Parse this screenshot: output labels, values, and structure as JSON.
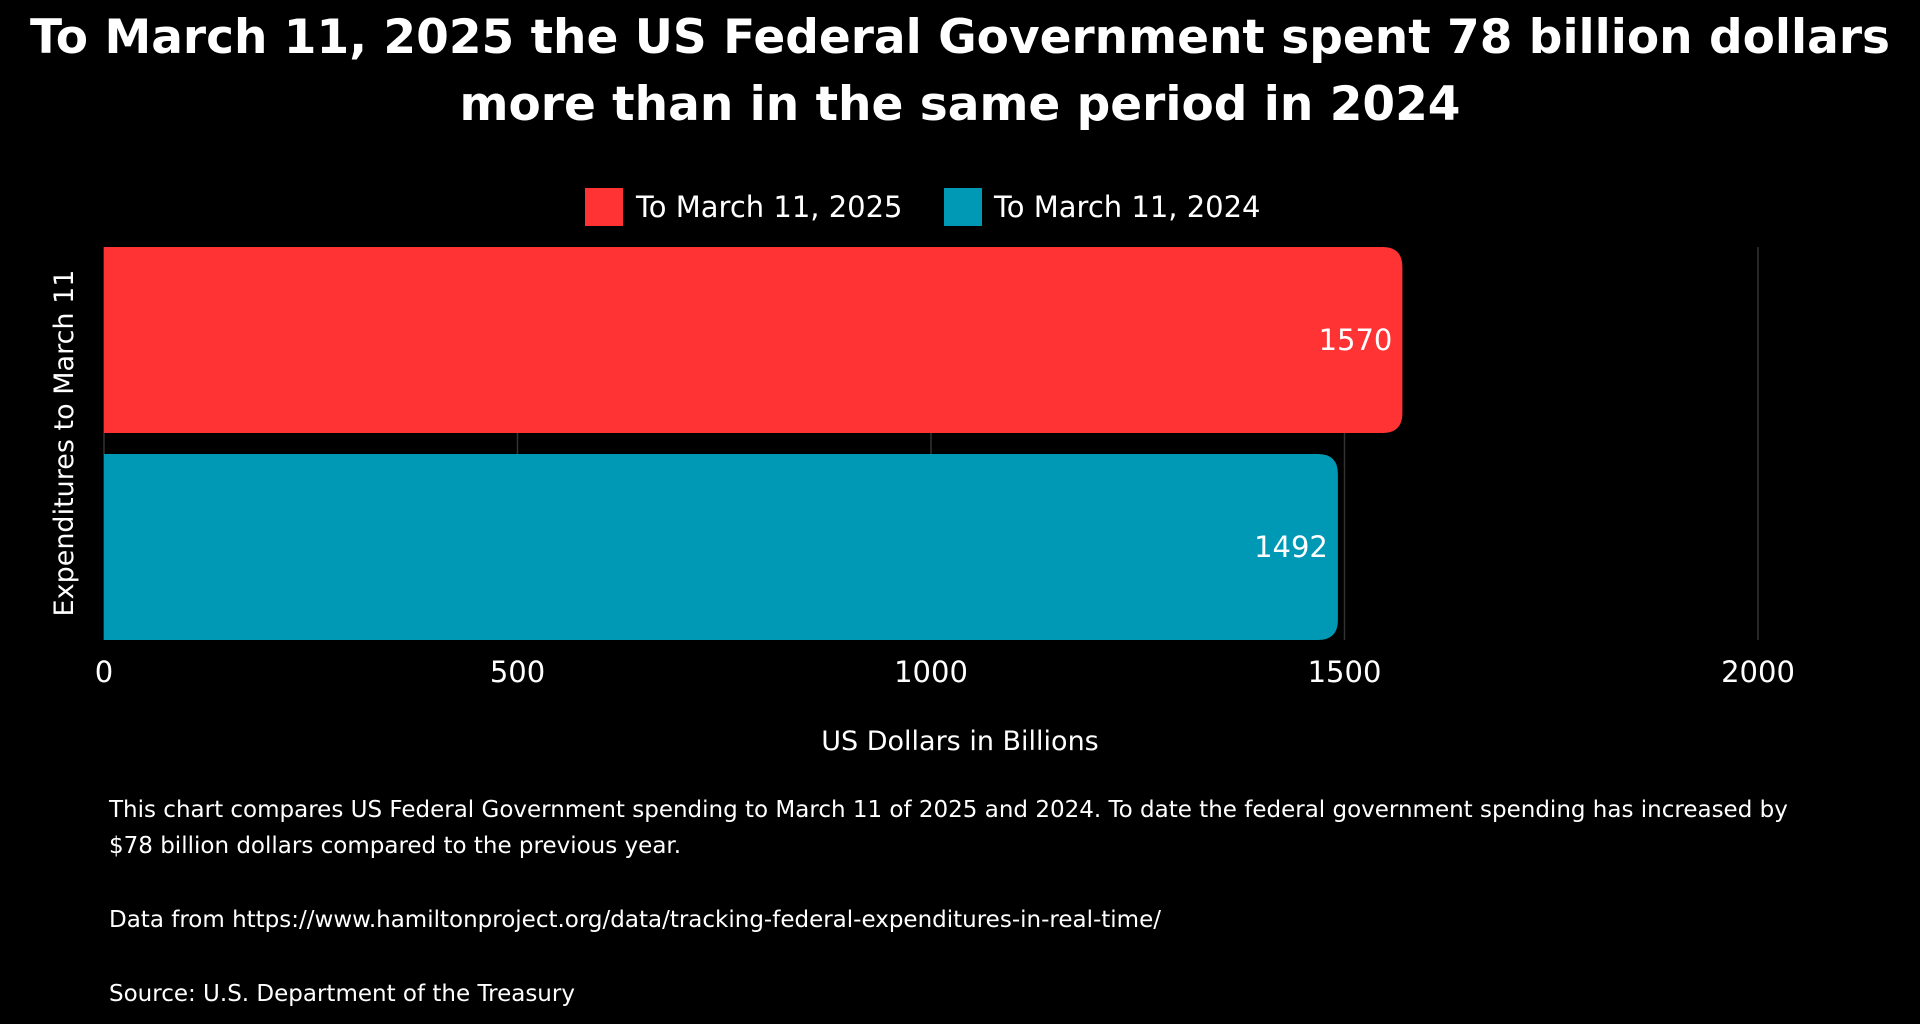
{
  "chart_data": {
    "type": "bar",
    "orientation": "horizontal",
    "title": "To March 11, 2025 the US Federal Government spent 78 billion dollars more than in the same period in 2024",
    "title_lines": [
      "To March 11, 2025 the US Federal Government spent 78 billion dollars",
      "more than in the same period in 2024"
    ],
    "xlabel": "US Dollars in Billions",
    "ylabel": "Expenditures to March 11",
    "xlim": [
      0,
      2000
    ],
    "xticks": [
      "0",
      "500",
      "1000",
      "1500",
      "2000"
    ],
    "grid": true,
    "legend_position": "top",
    "series": [
      {
        "name": "To March 11, 2025",
        "values": [
          1570
        ],
        "color": "#ff3333"
      },
      {
        "name": "To March 11, 2024",
        "values": [
          1492
        ],
        "color": "#0099b5"
      }
    ]
  },
  "notes": {
    "description": "This chart compares US Federal Government spending to March 11 of 2025 and 2024. To date the federal government spending has increased by $78 billion dollars compared to the previous year.",
    "data_from": "Data from https://www.hamiltonproject.org/data/tracking-federal-expenditures-in-real-time/",
    "source": "Source: U.S. Department of the Treasury"
  },
  "colors": {
    "background": "#000000",
    "grid": "#333333",
    "text": "#ffffff"
  }
}
